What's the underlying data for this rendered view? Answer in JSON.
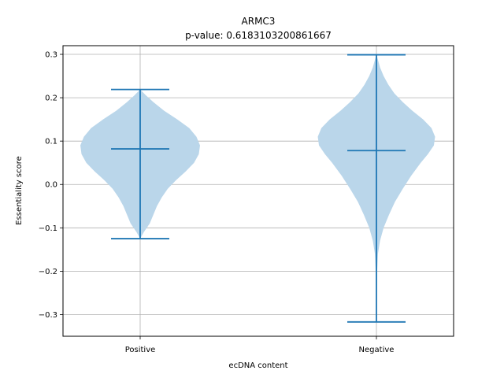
{
  "chart_data": {
    "type": "violin",
    "title": "ARMC3",
    "subtitle": "p-value: 0.6183103200861667",
    "xlabel": "ecDNA content",
    "ylabel": "Essentiality score",
    "categories": [
      "Positive",
      "Negative"
    ],
    "ylim": [
      -0.35,
      0.32
    ],
    "yticks": [
      -0.3,
      -0.2,
      -0.1,
      0.0,
      0.1,
      0.2,
      0.3
    ],
    "ytick_labels": [
      "−0.3",
      "−0.2",
      "−0.1",
      "0.0",
      "0.1",
      "0.2",
      "0.3"
    ],
    "grid": true,
    "colors": {
      "body": "#bad6ea",
      "line": "#1f77b4",
      "grid": "#b0b0b0"
    },
    "series": [
      {
        "category": "Positive",
        "min": -0.125,
        "median": 0.082,
        "max": 0.219,
        "density": [
          [
            -0.125,
            0.0
          ],
          [
            -0.11,
            0.06
          ],
          [
            -0.09,
            0.16
          ],
          [
            -0.07,
            0.22
          ],
          [
            -0.05,
            0.28
          ],
          [
            -0.03,
            0.36
          ],
          [
            -0.01,
            0.46
          ],
          [
            0.01,
            0.6
          ],
          [
            0.03,
            0.76
          ],
          [
            0.05,
            0.9
          ],
          [
            0.07,
            0.98
          ],
          [
            0.09,
            1.0
          ],
          [
            0.11,
            0.94
          ],
          [
            0.13,
            0.82
          ],
          [
            0.15,
            0.62
          ],
          [
            0.17,
            0.4
          ],
          [
            0.19,
            0.22
          ],
          [
            0.205,
            0.1
          ],
          [
            0.219,
            0.0
          ]
        ]
      },
      {
        "category": "Negative",
        "min": -0.317,
        "median": 0.078,
        "max": 0.299,
        "density": [
          [
            -0.317,
            0.0
          ],
          [
            -0.28,
            0.005
          ],
          [
            -0.24,
            0.008
          ],
          [
            -0.2,
            0.012
          ],
          [
            -0.16,
            0.025
          ],
          [
            -0.13,
            0.06
          ],
          [
            -0.1,
            0.12
          ],
          [
            -0.07,
            0.21
          ],
          [
            -0.04,
            0.31
          ],
          [
            -0.01,
            0.44
          ],
          [
            0.02,
            0.58
          ],
          [
            0.05,
            0.74
          ],
          [
            0.07,
            0.86
          ],
          [
            0.09,
            0.96
          ],
          [
            0.11,
            0.98
          ],
          [
            0.13,
            0.92
          ],
          [
            0.15,
            0.78
          ],
          [
            0.17,
            0.6
          ],
          [
            0.19,
            0.44
          ],
          [
            0.21,
            0.3
          ],
          [
            0.23,
            0.2
          ],
          [
            0.25,
            0.12
          ],
          [
            0.27,
            0.06
          ],
          [
            0.29,
            0.02
          ],
          [
            0.299,
            0.0
          ]
        ]
      }
    ]
  }
}
